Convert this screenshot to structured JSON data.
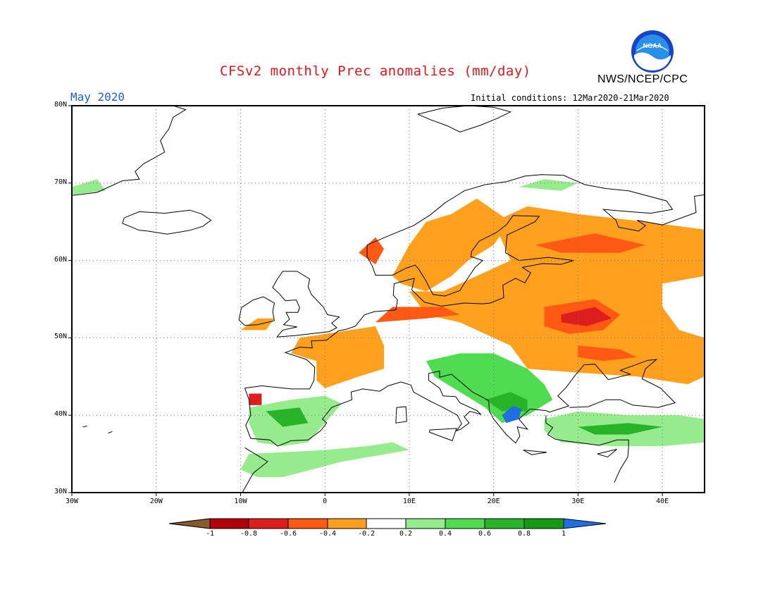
{
  "header": {
    "title": "CFSv2 monthly Prec anomalies (mm/day)",
    "month": "May 2020",
    "initial_conditions": "Initial conditions: 12Mar2020-21Mar2020",
    "agency": "NWS/NCEP/CPC",
    "logo_text": "NOAA"
  },
  "map": {
    "region": "Europe",
    "lon_range": [
      -30,
      45
    ],
    "lat_range": [
      30,
      80
    ],
    "lat_ticks": [
      "30N",
      "40N",
      "50N",
      "60N",
      "70N",
      "80N"
    ],
    "lon_ticks": [
      "30W",
      "20W",
      "10W",
      "0",
      "10E",
      "20E",
      "30E",
      "40E"
    ],
    "gridlines": "dotted"
  },
  "colorbar": {
    "labels": [
      "-1",
      "-0.8",
      "-0.6",
      "-0.4",
      "-0.2",
      "0.2",
      "0.4",
      "0.6",
      "0.8",
      "1"
    ],
    "colors": [
      "#8b5a2b",
      "#b0000a",
      "#dc1e1e",
      "#ff5a14",
      "#ffa01e",
      "#ffffff",
      "#96eb8c",
      "#50dc50",
      "#28b428",
      "#149b14",
      "#1e6ee6"
    ]
  },
  "anomaly_regions": [
    {
      "name": "Eastern Europe / western Russia",
      "category": "-0.4 to -0.2"
    },
    {
      "name": "Belarus core",
      "category": "-0.8 to -0.6"
    },
    {
      "name": "France / Benelux",
      "category": "-0.4 to -0.2"
    },
    {
      "name": "Iberia interior",
      "category": "0.2 to 0.6"
    },
    {
      "name": "Balkans",
      "category": "0.4 to 0.8"
    },
    {
      "name": "Greece / Bulgaria core",
      "category": "above 1"
    },
    {
      "name": "Turkey / eastern Mediterranean",
      "category": "0.2 to 0.6"
    },
    {
      "name": "North Africa coast",
      "category": "0.2 to 0.6"
    }
  ]
}
